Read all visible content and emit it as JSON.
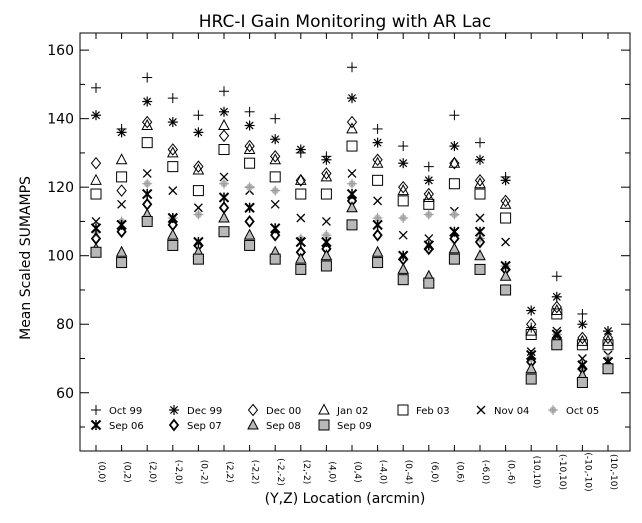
{
  "chart_data": {
    "type": "scatter",
    "title": "HRC-I Gain Monitoring with AR Lac",
    "xlabel": "(Y,Z) Location (arcmin)",
    "ylabel": "Mean Scaled SUMAMPS",
    "ylim": [
      43,
      165
    ],
    "yticks": [
      60,
      80,
      100,
      120,
      140,
      160
    ],
    "grid": false,
    "legend_position": "bottom-inside",
    "categories": [
      "(0,0)",
      "(0,2)",
      "(2,0)",
      "(-2,0)",
      "(0,-2)",
      "(2,2)",
      "(-2,2)",
      "(-2,-2)",
      "(2,-2)",
      "(4,0)",
      "(0,4)",
      "(-4,0)",
      "(0,-4)",
      "(6,0)",
      "(0,6)",
      "(-6,0)",
      "(0,-6)",
      "(10,10)",
      "(-10,10)",
      "(-10,-10)",
      "(10,-10)"
    ],
    "series": [
      {
        "name": "Oct 99",
        "marker": "plus",
        "values": [
          149,
          137,
          152,
          146,
          141,
          148,
          142,
          140,
          130,
          129,
          155,
          137,
          132,
          126,
          141,
          133,
          123,
          79,
          94,
          83,
          78
        ]
      },
      {
        "name": "Dec 99",
        "marker": "asterisk",
        "values": [
          141,
          136,
          145,
          139,
          136,
          142,
          138,
          134,
          131,
          128,
          146,
          133,
          127,
          122,
          132,
          128,
          122,
          84,
          88,
          80,
          78
        ]
      },
      {
        "name": "Dec 00",
        "marker": "diamond",
        "values": [
          127,
          119,
          139,
          131,
          126,
          135,
          132,
          129,
          122,
          124,
          139,
          128,
          120,
          118,
          127,
          122,
          116,
          80,
          85,
          76,
          76
        ]
      },
      {
        "name": "Jan 02",
        "marker": "triangle",
        "values": [
          122,
          128,
          138,
          130,
          125,
          138,
          131,
          128,
          122,
          123,
          137,
          127,
          119,
          117,
          127,
          121,
          115,
          78,
          84,
          75,
          75
        ]
      },
      {
        "name": "Feb 03",
        "marker": "square",
        "values": [
          118,
          123,
          133,
          126,
          119,
          131,
          127,
          123,
          118,
          118,
          132,
          122,
          116,
          115,
          121,
          118,
          111,
          77,
          83,
          74,
          74
        ]
      },
      {
        "name": "Nov 04",
        "marker": "cross",
        "values": [
          110,
          115,
          124,
          119,
          114,
          123,
          119,
          115,
          111,
          110,
          124,
          116,
          106,
          105,
          113,
          111,
          104,
          72,
          78,
          70,
          71
        ]
      },
      {
        "name": "Oct 05",
        "marker": "shaded-plus",
        "values": [
          107,
          110,
          121,
          111,
          112,
          121,
          120,
          119,
          105,
          106,
          121,
          111,
          111,
          112,
          112,
          105,
          97,
          70,
          77,
          67,
          70
        ]
      },
      {
        "name": "Sep 06",
        "marker": "asterisk-bold",
        "values": [
          108,
          109,
          118,
          111,
          104,
          117,
          114,
          108,
          104,
          104,
          118,
          109,
          100,
          103,
          107,
          107,
          97,
          71,
          77,
          68,
          69
        ]
      },
      {
        "name": "Sep 07",
        "marker": "diamond-bold",
        "values": [
          105,
          107,
          115,
          109,
          103,
          114,
          110,
          106,
          101,
          102,
          116,
          106,
          99,
          102,
          105,
          104,
          96,
          69,
          76,
          67,
          68
        ]
      },
      {
        "name": "Sep 08",
        "marker": "triangle-shaded",
        "values": [
          102,
          101,
          112,
          106,
          101,
          111,
          106,
          101,
          99,
          100,
          114,
          101,
          96,
          94,
          102,
          100,
          94,
          67,
          75,
          65,
          67
        ]
      },
      {
        "name": "Sep 09",
        "marker": "square-filled",
        "values": [
          101,
          98,
          110,
          103,
          99,
          107,
          103,
          99,
          96,
          97,
          109,
          98,
          93,
          92,
          99,
          96,
          90,
          64,
          74,
          63,
          67
        ]
      }
    ],
    "legend": [
      {
        "label": "Oct 99",
        "marker": "plus"
      },
      {
        "label": "Dec 99",
        "marker": "asterisk"
      },
      {
        "label": "Dec 00",
        "marker": "diamond"
      },
      {
        "label": "Jan 02",
        "marker": "triangle"
      },
      {
        "label": "Feb 03",
        "marker": "square"
      },
      {
        "label": "Nov 04",
        "marker": "cross"
      },
      {
        "label": "Oct 05",
        "marker": "shaded-plus"
      },
      {
        "label": "Sep 06",
        "marker": "asterisk-bold"
      },
      {
        "label": "Sep 07",
        "marker": "diamond-bold"
      },
      {
        "label": "Sep 08",
        "marker": "triangle-shaded"
      },
      {
        "label": "Sep 09",
        "marker": "square-filled"
      }
    ],
    "colors": {
      "ink": "#000000",
      "fill_gray": "#b8b8b8",
      "shade_gray": "#999999",
      "background": "#ffffff"
    }
  }
}
